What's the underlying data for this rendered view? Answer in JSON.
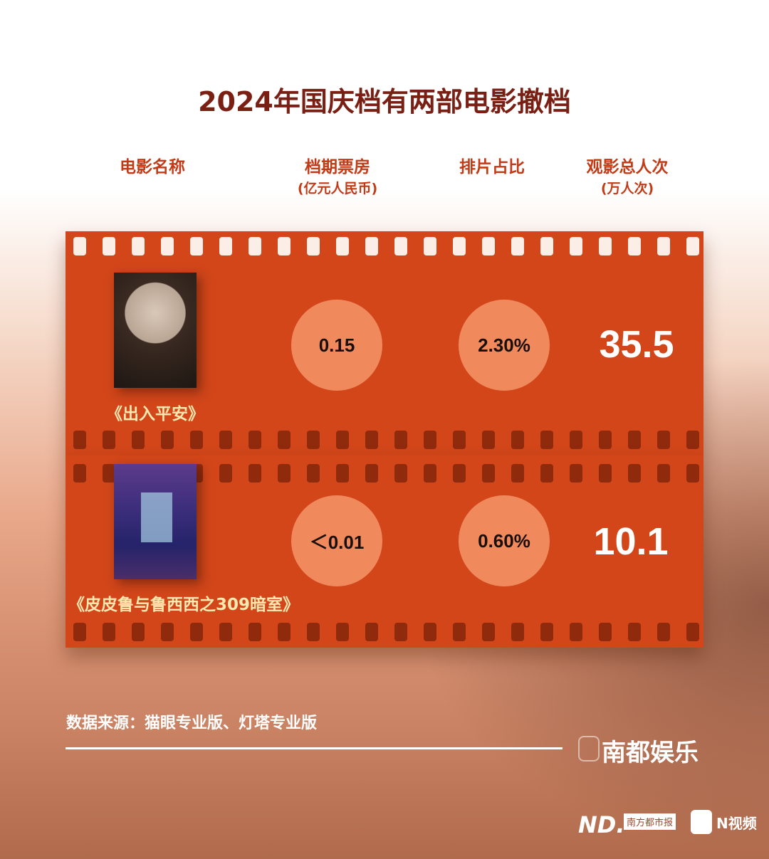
{
  "title": "2024年国庆档有两部电影撤档",
  "headers": {
    "name": "电影名称",
    "box_office": "档期票房",
    "box_office_unit": "(亿元人民币)",
    "screening_share": "排片占比",
    "admissions": "观影总人次",
    "admissions_unit": "(万人次)"
  },
  "chart_data": {
    "type": "table",
    "title": "2024年国庆档有两部电影撤档",
    "columns": [
      "电影名称",
      "档期票房(亿元人民币)",
      "排片占比",
      "观影总人次(万人次)"
    ],
    "rows": [
      {
        "name": "《出入平安》",
        "box_office": "0.15",
        "share": "2.30%",
        "admissions": "35.5"
      },
      {
        "name": "《皮皮鲁与鲁西西之309暗室》",
        "box_office": "＜0.01",
        "share": "0.60%",
        "admissions": "10.1"
      }
    ]
  },
  "source": "数据来源：猫眼专业版、灯塔专业版",
  "brand": "南都娱乐",
  "logos": {
    "nd": "ND.",
    "paper": "南方都市报",
    "nvideo": "N视频"
  },
  "colors": {
    "title": "#7a1f14",
    "header": "#c33a16",
    "film": "#d2461a",
    "circle": "#f08a5d"
  }
}
